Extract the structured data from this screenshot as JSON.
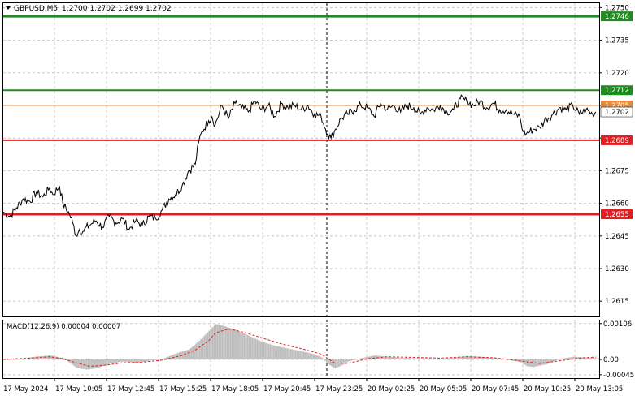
{
  "chart_data": {
    "type": "line",
    "symbol": "GBPUSD,M5",
    "ohlc_summary": "1.2700 1.2702 1.2699 1.2702",
    "price_ylim": [
      1.2608,
      1.2752
    ],
    "price_ticks": [
      "1.2750",
      "1.2735",
      "1.2720",
      "1.2705",
      "1.2690",
      "1.2675",
      "1.2660",
      "1.2645",
      "1.2630",
      "1.2615"
    ],
    "time_labels": [
      "17 May 2024",
      "17 May 10:05",
      "17 May 12:45",
      "17 May 15:25",
      "17 May 18:05",
      "17 May 20:45",
      "17 May 23:25",
      "20 May 02:25",
      "20 May 05:05",
      "20 May 07:45",
      "20 May 10:25",
      "20 May 13:05"
    ],
    "price_series": [
      [
        0,
        1.2656
      ],
      [
        2,
        1.2654
      ],
      [
        4,
        1.2658
      ],
      [
        6,
        1.2662
      ],
      [
        8,
        1.2661
      ],
      [
        10,
        1.2665
      ],
      [
        12,
        1.2663
      ],
      [
        14,
        1.2667
      ],
      [
        15,
        1.2664
      ],
      [
        17,
        1.2668
      ],
      [
        18,
        1.266
      ],
      [
        20,
        1.2655
      ],
      [
        21,
        1.2651
      ],
      [
        22,
        1.2645
      ],
      [
        23,
        1.2648
      ],
      [
        24,
        1.2647
      ],
      [
        26,
        1.265
      ],
      [
        28,
        1.2652
      ],
      [
        30,
        1.2649
      ],
      [
        32,
        1.2654
      ],
      [
        34,
        1.2651
      ],
      [
        36,
        1.2653
      ],
      [
        38,
        1.2648
      ],
      [
        40,
        1.2652
      ],
      [
        42,
        1.265
      ],
      [
        44,
        1.2654
      ],
      [
        46,
        1.2653
      ],
      [
        48,
        1.2657
      ],
      [
        50,
        1.2662
      ],
      [
        52,
        1.2664
      ],
      [
        54,
        1.2668
      ],
      [
        56,
        1.2675
      ],
      [
        58,
        1.2678
      ],
      [
        59,
        1.2688
      ],
      [
        60,
        1.2693
      ],
      [
        62,
        1.2698
      ],
      [
        63,
        1.27
      ],
      [
        64,
        1.2696
      ],
      [
        66,
        1.2705
      ],
      [
        68,
        1.2699
      ],
      [
        70,
        1.2706
      ],
      [
        72,
        1.2704
      ],
      [
        74,
        1.2702
      ],
      [
        76,
        1.2707
      ],
      [
        78,
        1.2703
      ],
      [
        80,
        1.2705
      ],
      [
        82,
        1.27
      ],
      [
        84,
        1.2706
      ],
      [
        86,
        1.2704
      ],
      [
        88,
        1.2705
      ],
      [
        90,
        1.2703
      ],
      [
        92,
        1.2705
      ],
      [
        94,
        1.2701
      ],
      [
        96,
        1.27
      ],
      [
        98,
        1.2692
      ],
      [
        99,
        1.269
      ],
      [
        100,
        1.2693
      ],
      [
        102,
        1.2699
      ],
      [
        104,
        1.2701
      ],
      [
        106,
        1.2703
      ],
      [
        108,
        1.2705
      ],
      [
        110,
        1.2704
      ],
      [
        112,
        1.27
      ],
      [
        114,
        1.2706
      ],
      [
        116,
        1.2703
      ],
      [
        118,
        1.2705
      ],
      [
        120,
        1.2702
      ],
      [
        122,
        1.2705
      ],
      [
        124,
        1.2704
      ],
      [
        126,
        1.2701
      ],
      [
        128,
        1.2704
      ],
      [
        130,
        1.2703
      ],
      [
        132,
        1.2705
      ],
      [
        134,
        1.2702
      ],
      [
        136,
        1.2703
      ],
      [
        138,
        1.2708
      ],
      [
        140,
        1.2707
      ],
      [
        142,
        1.2705
      ],
      [
        144,
        1.2707
      ],
      [
        146,
        1.2704
      ],
      [
        148,
        1.2706
      ],
      [
        150,
        1.2703
      ],
      [
        152,
        1.2703
      ],
      [
        154,
        1.2701
      ],
      [
        156,
        1.27
      ],
      [
        157,
        1.2693
      ],
      [
        158,
        1.2692
      ],
      [
        160,
        1.2694
      ],
      [
        162,
        1.2695
      ],
      [
        164,
        1.2699
      ],
      [
        166,
        1.2701
      ],
      [
        168,
        1.2704
      ],
      [
        170,
        1.2703
      ],
      [
        172,
        1.2705
      ],
      [
        174,
        1.2701
      ],
      [
        176,
        1.2703
      ],
      [
        178,
        1.2701
      ],
      [
        179,
        1.2702
      ]
    ],
    "levels": [
      {
        "price": 1.2746,
        "label": "1.2746",
        "color": "#1e8c1e"
      },
      {
        "price": 1.2712,
        "label": "1.2712",
        "color": "#1e8c1e"
      },
      {
        "price": 1.2705,
        "label": "1.2705",
        "color": "#e8893a"
      },
      {
        "price": 1.2689,
        "label": "1.2689",
        "color": "#e02020"
      },
      {
        "price": 1.2655,
        "label": "1.2655",
        "color": "#e02020"
      }
    ],
    "last_price_label": "1.2702",
    "macd": {
      "title": "MACD(12,26,9) 0.00004 0.00007",
      "ticks": [
        "0.00106",
        "0.00",
        "-0.00045"
      ],
      "ylim": [
        -0.00055,
        0.00115
      ],
      "histogram": [
        [
          0,
          0.0
        ],
        [
          6,
          3e-05
        ],
        [
          10,
          9e-05
        ],
        [
          14,
          0.00012
        ],
        [
          18,
          4e-05
        ],
        [
          22,
          -0.00025
        ],
        [
          25,
          -0.0003
        ],
        [
          28,
          -0.00026
        ],
        [
          32,
          -0.00012
        ],
        [
          36,
          -6e-05
        ],
        [
          40,
          -0.0001
        ],
        [
          44,
          -4e-05
        ],
        [
          48,
          2e-05
        ],
        [
          52,
          0.00018
        ],
        [
          56,
          0.0003
        ],
        [
          59,
          0.00055
        ],
        [
          62,
          0.00085
        ],
        [
          64,
          0.00105
        ],
        [
          66,
          0.001
        ],
        [
          70,
          0.00088
        ],
        [
          74,
          0.0007
        ],
        [
          78,
          0.00052
        ],
        [
          82,
          0.0004
        ],
        [
          86,
          0.00032
        ],
        [
          90,
          0.00024
        ],
        [
          94,
          0.00015
        ],
        [
          96,
          6e-05
        ],
        [
          98,
          -0.00014
        ],
        [
          100,
          -0.00026
        ],
        [
          102,
          -0.00018
        ],
        [
          104,
          -6e-05
        ],
        [
          108,
          4e-05
        ],
        [
          112,
          0.00012
        ],
        [
          116,
          8e-05
        ],
        [
          120,
          5e-05
        ],
        [
          124,
          4e-05
        ],
        [
          128,
          3e-05
        ],
        [
          132,
          2e-05
        ],
        [
          136,
          6e-05
        ],
        [
          140,
          0.0001
        ],
        [
          144,
          8e-05
        ],
        [
          148,
          4e-05
        ],
        [
          152,
          0.0
        ],
        [
          156,
          -8e-05
        ],
        [
          158,
          -0.0002
        ],
        [
          160,
          -0.00022
        ],
        [
          164,
          -0.00014
        ],
        [
          168,
          2e-05
        ],
        [
          172,
          8e-05
        ],
        [
          176,
          6e-05
        ],
        [
          179,
          4e-05
        ]
      ],
      "signal": [
        [
          0,
          0.0
        ],
        [
          8,
          4e-05
        ],
        [
          14,
          8e-05
        ],
        [
          18,
          2e-05
        ],
        [
          22,
          -0.0001
        ],
        [
          26,
          -0.0002
        ],
        [
          30,
          -0.00018
        ],
        [
          36,
          -0.0001
        ],
        [
          42,
          -8e-05
        ],
        [
          48,
          -2e-05
        ],
        [
          54,
          0.00012
        ],
        [
          58,
          0.00028
        ],
        [
          62,
          0.00055
        ],
        [
          64,
          0.00078
        ],
        [
          68,
          0.0009
        ],
        [
          72,
          0.00082
        ],
        [
          78,
          0.00064
        ],
        [
          84,
          0.00046
        ],
        [
          90,
          0.00032
        ],
        [
          96,
          0.00016
        ],
        [
          100,
          -0.0001
        ],
        [
          104,
          -0.00012
        ],
        [
          110,
          2e-05
        ],
        [
          116,
          8e-05
        ],
        [
          124,
          6e-05
        ],
        [
          132,
          4e-05
        ],
        [
          140,
          8e-05
        ],
        [
          148,
          5e-05
        ],
        [
          156,
          -4e-05
        ],
        [
          162,
          -0.00012
        ],
        [
          168,
          -4e-05
        ],
        [
          174,
          4e-05
        ],
        [
          179,
          7e-05
        ]
      ]
    }
  }
}
